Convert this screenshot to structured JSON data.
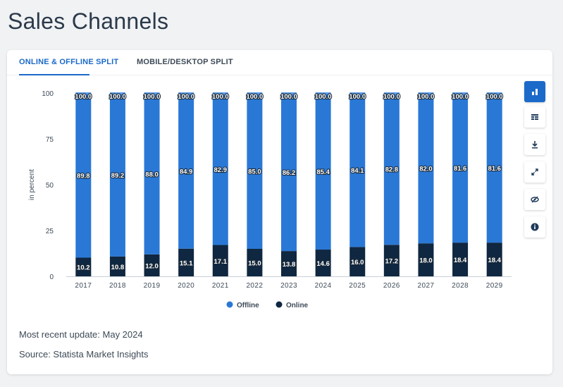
{
  "page": {
    "title": "Sales Channels"
  },
  "tabs": [
    {
      "label": "ONLINE & OFFLINE SPLIT",
      "active": true
    },
    {
      "label": "MOBILE/DESKTOP SPLIT",
      "active": false
    }
  ],
  "toolbar": [
    {
      "icon": "bar-chart-icon",
      "active": true
    },
    {
      "icon": "table-icon",
      "active": false
    },
    {
      "icon": "download-icon",
      "active": false
    },
    {
      "icon": "fullscreen-icon",
      "active": false
    },
    {
      "icon": "hide-icon",
      "active": false
    },
    {
      "icon": "info-icon",
      "active": false
    }
  ],
  "chart_data": {
    "type": "bar",
    "stacked": true,
    "categories": [
      "2017",
      "2018",
      "2019",
      "2020",
      "2021",
      "2022",
      "2023",
      "2024",
      "2025",
      "2026",
      "2027",
      "2028",
      "2029"
    ],
    "series": [
      {
        "name": "Online",
        "color": "#0f2740",
        "values": [
          10.2,
          10.8,
          12.0,
          15.1,
          17.1,
          15.0,
          13.8,
          14.6,
          16.0,
          17.2,
          18.0,
          18.4,
          18.4
        ]
      },
      {
        "name": "Offline",
        "color": "#2a78d6",
        "values": [
          89.8,
          89.2,
          88.0,
          84.9,
          82.9,
          85.0,
          86.2,
          85.4,
          84.1,
          82.8,
          82.0,
          81.6,
          81.6
        ]
      }
    ],
    "total_labels": [
      "100.0",
      "100.0",
      "100.0",
      "100.0",
      "100.0",
      "100.0",
      "100.0",
      "100.0",
      "100.0",
      "100.0",
      "100.0",
      "100.0",
      "100.0"
    ],
    "online_labels": [
      "10.2",
      "10.8",
      "12.0",
      "15.1",
      "17.1",
      "15.0",
      "13.8",
      "14.6",
      "16.0",
      "17.2",
      "18.0",
      "18.4",
      "18.4"
    ],
    "offline_labels": [
      "89.8",
      "89.2",
      "88.0",
      "84.9",
      "82.9",
      "85.0",
      "86.2",
      "85.4",
      "84.1",
      "82.8",
      "82.0",
      "81.6",
      "81.6"
    ],
    "ylabel": "in percent",
    "ylim": [
      0,
      100
    ],
    "yticks": [
      "0",
      "25",
      "50",
      "75",
      "100"
    ],
    "legend": [
      {
        "label": "Offline",
        "color": "#2a78d6"
      },
      {
        "label": "Online",
        "color": "#0f2740"
      }
    ],
    "legend_position": "bottom",
    "grid": false
  },
  "footer": {
    "update": "Most recent update: May 2024",
    "source": "Source: Statista Market Insights"
  }
}
